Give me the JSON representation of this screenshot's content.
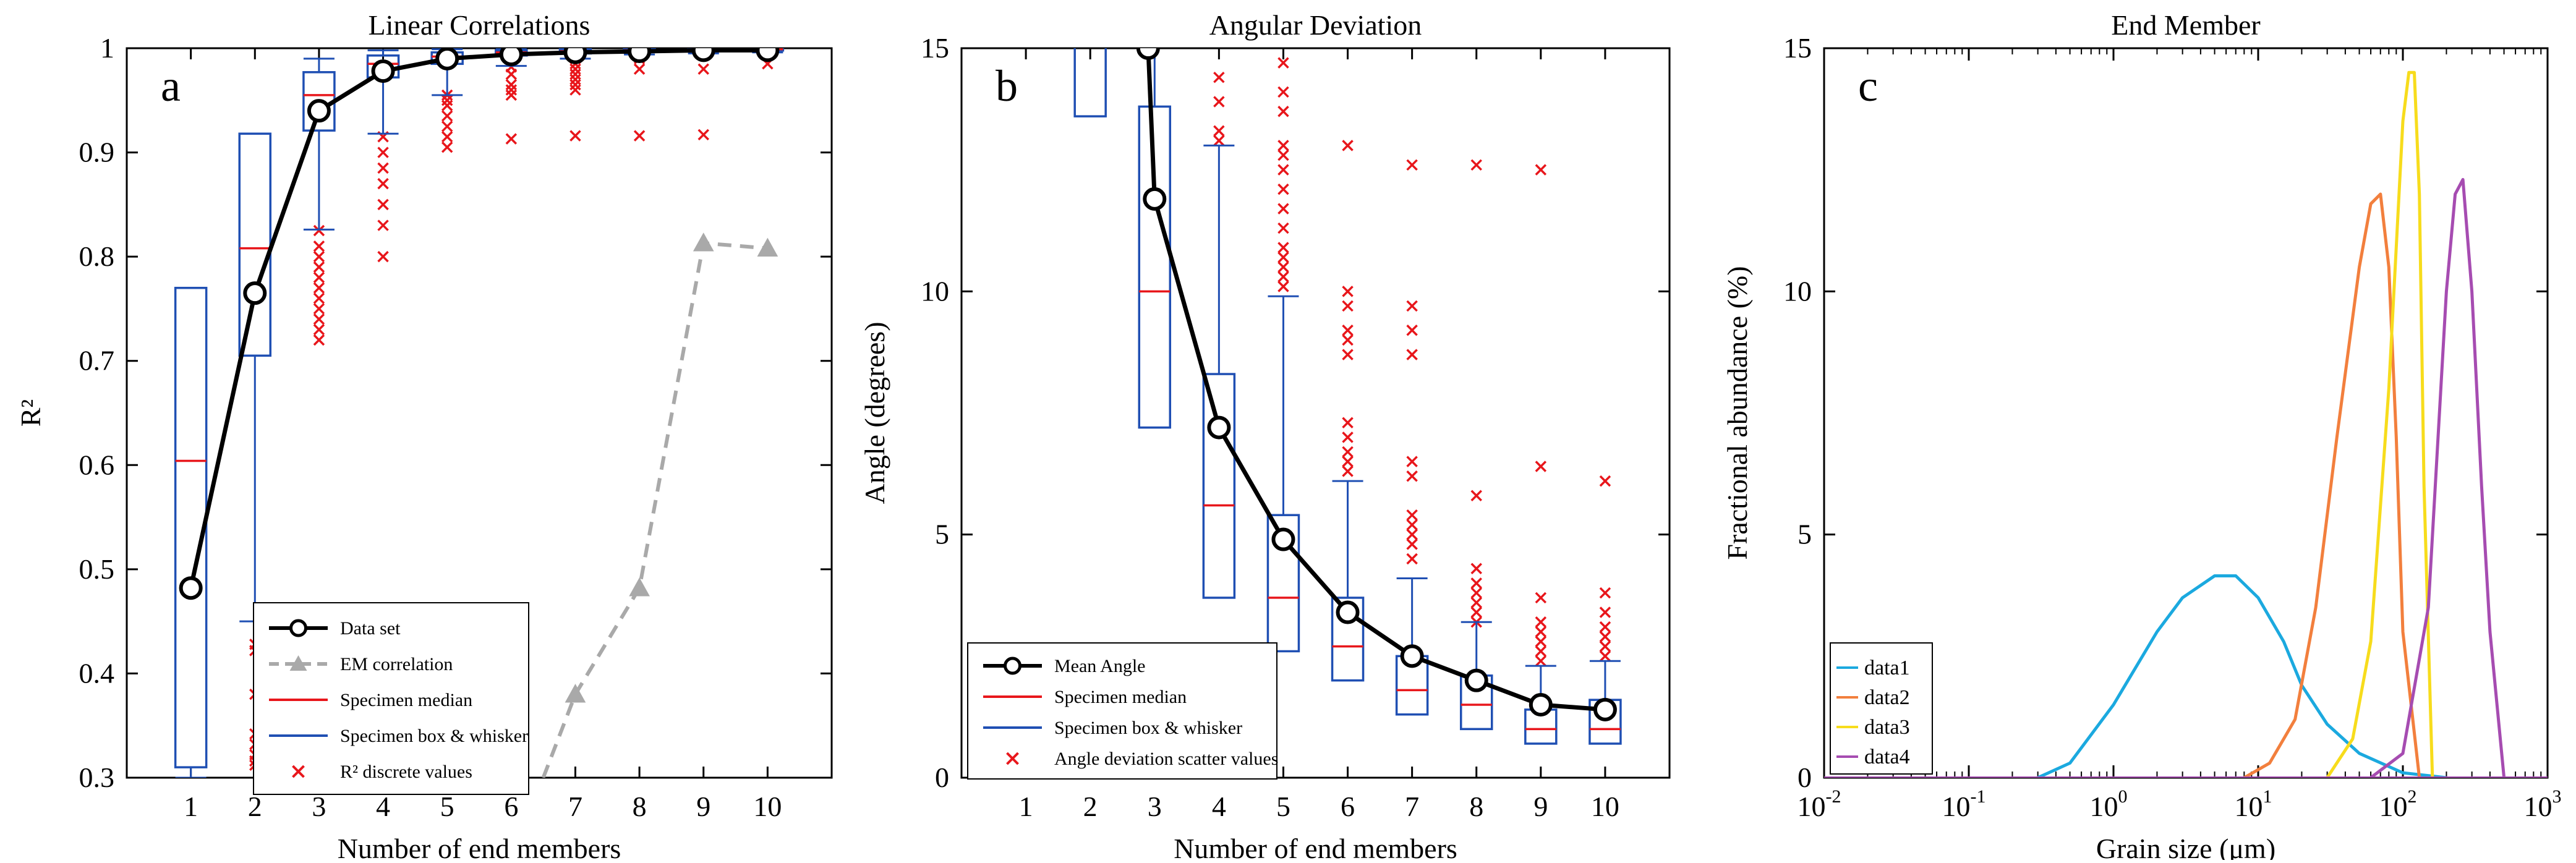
{
  "chart_data": [
    {
      "type": "box",
      "panel_label": "a",
      "title": "Linear Correlations",
      "xlabel": "Number of end members",
      "ylabel": "R²",
      "xlim": [
        0,
        11
      ],
      "ylim": [
        0.3,
        1.0
      ],
      "xticks": [
        "1",
        "2",
        "3",
        "4",
        "5",
        "6",
        "7",
        "8",
        "9",
        "10"
      ],
      "yticks": [
        "0.3",
        "0.4",
        "0.5",
        "0.6",
        "0.7",
        "0.8",
        "0.9",
        "1"
      ],
      "legend": [
        "Data set",
        "EM correlation",
        "Specimen median",
        "Specimen box & whisker",
        "R² discrete values"
      ],
      "legend_position": "bottom-center",
      "series": [
        {
          "name": "Data set",
          "x": [
            1,
            2,
            3,
            4,
            5,
            6,
            7,
            8,
            9,
            10
          ],
          "values": [
            0.482,
            0.765,
            0.94,
            0.978,
            0.99,
            0.994,
            0.996,
            0.997,
            0.998,
            0.998
          ]
        },
        {
          "name": "EM correlation",
          "x": [
            6.5,
            7,
            8,
            9,
            10
          ],
          "values": [
            0.3,
            0.38,
            0.482,
            0.813,
            0.808
          ]
        }
      ],
      "boxes": [
        {
          "x": 1,
          "whisker_low": 0.3,
          "q1": 0.31,
          "median": 0.604,
          "q3": 0.77,
          "whisker_high": 0.77
        },
        {
          "x": 2,
          "whisker_low": 0.45,
          "q1": 0.705,
          "median": 0.808,
          "q3": 0.918,
          "whisker_high": 0.918
        },
        {
          "x": 3,
          "whisker_low": 0.826,
          "q1": 0.921,
          "median": 0.955,
          "q3": 0.977,
          "whisker_high": 0.99
        },
        {
          "x": 4,
          "whisker_low": 0.918,
          "q1": 0.972,
          "median": 0.985,
          "q3": 0.993,
          "whisker_high": 0.998
        },
        {
          "x": 5,
          "whisker_low": 0.955,
          "q1": 0.985,
          "median": 0.992,
          "q3": 0.996,
          "whisker_high": 0.999
        },
        {
          "x": 6,
          "whisker_low": 0.983,
          "q1": 0.993,
          "median": 0.996,
          "q3": 0.998,
          "whisker_high": 0.999
        },
        {
          "x": 7,
          "whisker_low": 0.99,
          "q1": 0.995,
          "median": 0.997,
          "q3": 0.999,
          "whisker_high": 1.0
        },
        {
          "x": 8,
          "whisker_low": 0.994,
          "q1": 0.997,
          "median": 0.998,
          "q3": 0.999,
          "whisker_high": 1.0
        },
        {
          "x": 9,
          "whisker_low": 0.995,
          "q1": 0.997,
          "median": 0.998,
          "q3": 0.999,
          "whisker_high": 1.0
        },
        {
          "x": 10,
          "whisker_low": 0.996,
          "q1": 0.998,
          "median": 0.999,
          "q3": 0.999,
          "whisker_high": 1.0
        }
      ],
      "outliers": [
        {
          "x": 2,
          "values": [
            0.428,
            0.422,
            0.38,
            0.342,
            0.332,
            0.322,
            0.316,
            0.312
          ]
        },
        {
          "x": 3,
          "values": [
            0.825,
            0.81,
            0.8,
            0.79,
            0.78,
            0.77,
            0.76,
            0.75,
            0.74,
            0.73,
            0.72
          ]
        },
        {
          "x": 4,
          "values": [
            0.915,
            0.9,
            0.885,
            0.87,
            0.85,
            0.83,
            0.8
          ]
        },
        {
          "x": 5,
          "values": [
            0.955,
            0.95,
            0.945,
            0.935,
            0.925,
            0.915,
            0.905
          ]
        },
        {
          "x": 6,
          "values": [
            0.982,
            0.975,
            0.965,
            0.96,
            0.955,
            0.913
          ]
        },
        {
          "x": 7,
          "values": [
            0.99,
            0.985,
            0.98,
            0.975,
            0.97,
            0.965,
            0.96,
            0.916
          ]
        },
        {
          "x": 8,
          "values": [
            0.995,
            0.99,
            0.98,
            0.916
          ]
        },
        {
          "x": 9,
          "values": [
            0.993,
            0.98,
            0.917
          ]
        },
        {
          "x": 10,
          "values": [
            0.994,
            0.985
          ]
        }
      ]
    },
    {
      "type": "box",
      "panel_label": "b",
      "title": "Angular Deviation",
      "xlabel": "Number of end members",
      "ylabel": "Angle (degrees)",
      "xlim": [
        0,
        11
      ],
      "ylim": [
        0,
        15
      ],
      "xticks": [
        "1",
        "2",
        "3",
        "4",
        "5",
        "6",
        "7",
        "8",
        "9",
        "10"
      ],
      "yticks": [
        "0",
        "5",
        "10",
        "15"
      ],
      "legend": [
        "Mean Angle",
        "Specimen median",
        "Specimen box & whisker",
        "Angle deviation scatter values"
      ],
      "legend_position": "bottom-left",
      "series": [
        {
          "name": "Mean Angle",
          "x": [
            2.9,
            3,
            4,
            5,
            6,
            7,
            8,
            9,
            10
          ],
          "values": [
            15,
            11.9,
            7.2,
            4.9,
            3.4,
            2.5,
            2.0,
            1.5,
            1.4
          ]
        }
      ],
      "boxes": [
        {
          "x": 2,
          "whisker_low": 13.6,
          "q1": 13.6,
          "median": 16,
          "q3": 16,
          "whisker_high": 16
        },
        {
          "x": 3,
          "whisker_low": 7.2,
          "q1": 7.2,
          "median": 10.0,
          "q3": 13.8,
          "whisker_high": 16
        },
        {
          "x": 4,
          "whisker_low": 3.7,
          "q1": 3.7,
          "median": 5.6,
          "q3": 8.3,
          "whisker_high": 13.0
        },
        {
          "x": 5,
          "whisker_low": 2.6,
          "q1": 2.6,
          "median": 3.7,
          "q3": 5.4,
          "whisker_high": 9.9
        },
        {
          "x": 6,
          "whisker_low": 2.0,
          "q1": 2.0,
          "median": 2.7,
          "q3": 3.7,
          "whisker_high": 6.1
        },
        {
          "x": 7,
          "whisker_low": 1.3,
          "q1": 1.3,
          "median": 1.8,
          "q3": 2.5,
          "whisker_high": 4.1
        },
        {
          "x": 8,
          "whisker_low": 1.0,
          "q1": 1.0,
          "median": 1.5,
          "q3": 2.1,
          "whisker_high": 3.2
        },
        {
          "x": 9,
          "whisker_low": 0.7,
          "q1": 0.7,
          "median": 1.0,
          "q3": 1.4,
          "whisker_high": 2.3
        },
        {
          "x": 10,
          "whisker_low": 0.7,
          "q1": 0.7,
          "median": 1.0,
          "q3": 1.6,
          "whisker_high": 2.4
        }
      ],
      "outliers": [
        {
          "x": 4,
          "values": [
            14.4,
            13.9,
            13.3,
            13.1
          ]
        },
        {
          "x": 5,
          "values": [
            14.7,
            14.1,
            13.7,
            13.0,
            12.8,
            12.5,
            12.1,
            11.7,
            11.3,
            10.9,
            10.7,
            10.5,
            10.3,
            10.1
          ]
        },
        {
          "x": 6,
          "values": [
            13.0,
            10.0,
            9.7,
            9.2,
            9.0,
            8.7,
            7.3,
            7.0,
            6.7,
            6.5,
            6.3
          ]
        },
        {
          "x": 7,
          "values": [
            12.6,
            9.7,
            9.2,
            8.7,
            6.5,
            6.2,
            5.4,
            5.2,
            5.0,
            4.8,
            4.5
          ]
        },
        {
          "x": 8,
          "values": [
            12.6,
            5.8,
            4.3,
            4.0,
            3.8,
            3.6,
            3.4,
            3.2
          ]
        },
        {
          "x": 9,
          "values": [
            12.5,
            6.4,
            3.7,
            3.2,
            3.0,
            2.8,
            2.6,
            2.4
          ]
        },
        {
          "x": 10,
          "values": [
            6.1,
            3.8,
            3.4,
            3.1,
            2.9,
            2.7,
            2.5
          ]
        }
      ]
    },
    {
      "type": "line",
      "panel_label": "c",
      "title": "End Member",
      "xlabel": "Grain size (μm)",
      "ylabel": "Fractional abundance (%)",
      "xscale": "log",
      "xlim": [
        0.01,
        1000
      ],
      "ylim": [
        0,
        15
      ],
      "xticks": [
        "10",
        "10",
        "10",
        "10",
        "10",
        "10"
      ],
      "xtick_exponents": [
        "-2",
        "-1",
        "0",
        "1",
        "2",
        "3"
      ],
      "yticks": [
        "0",
        "5",
        "10",
        "15"
      ],
      "legend_position": "bottom-left",
      "series": [
        {
          "name": "data1",
          "color": "#1ba9df",
          "x": [
            0.3,
            0.5,
            1,
            2,
            3,
            5,
            7,
            10,
            15,
            20,
            30,
            50,
            100,
            200
          ],
          "values": [
            0,
            0.3,
            1.5,
            3.0,
            3.7,
            4.15,
            4.15,
            3.7,
            2.8,
            1.9,
            1.1,
            0.5,
            0.1,
            0
          ]
        },
        {
          "name": "data2",
          "color": "#f27f3d",
          "x": [
            8,
            12,
            18,
            25,
            35,
            50,
            60,
            70,
            80,
            90,
            100,
            130
          ],
          "values": [
            0,
            0.3,
            1.2,
            3.5,
            7.0,
            10.5,
            11.8,
            12.0,
            10.5,
            7.0,
            3.0,
            0
          ]
        },
        {
          "name": "data3",
          "color": "#f7dc1c",
          "x": [
            30,
            45,
            60,
            80,
            100,
            110,
            120,
            130,
            140,
            160
          ],
          "values": [
            0,
            0.8,
            2.8,
            8.0,
            13.5,
            14.5,
            14.5,
            12.0,
            6.0,
            0
          ]
        },
        {
          "name": "data4",
          "color": "#a64cb1",
          "x": [
            60,
            100,
            150,
            200,
            230,
            260,
            300,
            350,
            400,
            500
          ],
          "values": [
            0,
            0.5,
            3.5,
            10.0,
            12.0,
            12.3,
            10.0,
            6.0,
            3.0,
            0
          ]
        }
      ]
    }
  ]
}
